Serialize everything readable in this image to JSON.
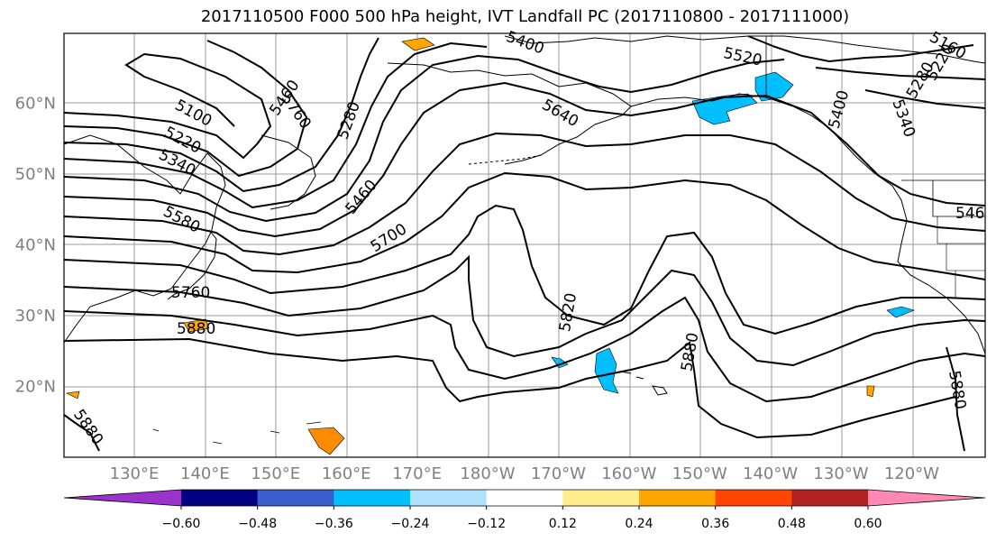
{
  "title": "2017110500 F000 500 hPa height, IVT Landfall PC (2017110800 - 2017111000)",
  "lat_labels": [
    {
      "text": "60°N",
      "lat": 60
    },
    {
      "text": "50°N",
      "lat": 50
    },
    {
      "text": "40°N",
      "lat": 40
    },
    {
      "text": "30°N",
      "lat": 30
    },
    {
      "text": "20°N",
      "lat": 20
    }
  ],
  "lon_labels": [
    {
      "text": "130°E",
      "lon": 130
    },
    {
      "text": "140°E",
      "lon": 140
    },
    {
      "text": "150°E",
      "lon": 150
    },
    {
      "text": "160°E",
      "lon": 160
    },
    {
      "text": "170°E",
      "lon": 170
    },
    {
      "text": "180°W",
      "lon": 180
    },
    {
      "text": "170°W",
      "lon": 190
    },
    {
      "text": "160°W",
      "lon": 200
    },
    {
      "text": "150°W",
      "lon": 210
    },
    {
      "text": "140°W",
      "lon": 220
    },
    {
      "text": "130°W",
      "lon": 230
    },
    {
      "text": "120°W",
      "lon": 240
    }
  ],
  "contour_labels": [
    {
      "text": "5100"
    },
    {
      "text": "5220"
    },
    {
      "text": "5340"
    },
    {
      "text": "5580"
    },
    {
      "text": "5760"
    },
    {
      "text": "5880"
    },
    {
      "text": "5280"
    },
    {
      "text": "5400"
    },
    {
      "text": "5460"
    },
    {
      "text": "5700"
    },
    {
      "text": "5520"
    },
    {
      "text": "5640"
    },
    {
      "text": "5820"
    },
    {
      "text": "5880"
    },
    {
      "text": "5460"
    },
    {
      "text": "5160"
    },
    {
      "text": "5220"
    },
    {
      "text": "5280"
    },
    {
      "text": "5340"
    },
    {
      "text": "5400"
    },
    {
      "text": "546"
    },
    {
      "text": "5880"
    },
    {
      "text": "5880"
    },
    {
      "text": "5760"
    }
  ],
  "colorbar": {
    "colors": [
      "#9933cc",
      "#000080",
      "#3a5fcd",
      "#00bfff",
      "#b0e2ff",
      "#ffffff",
      "#ffec8b",
      "#ffa500",
      "#ff4500",
      "#b22222",
      "#ff89b4"
    ],
    "tick_labels": [
      "−0.60",
      "−0.48",
      "−0.36",
      "−0.24",
      "−0.12",
      "0.12",
      "0.24",
      "0.36",
      "0.48",
      "0.60"
    ]
  }
}
